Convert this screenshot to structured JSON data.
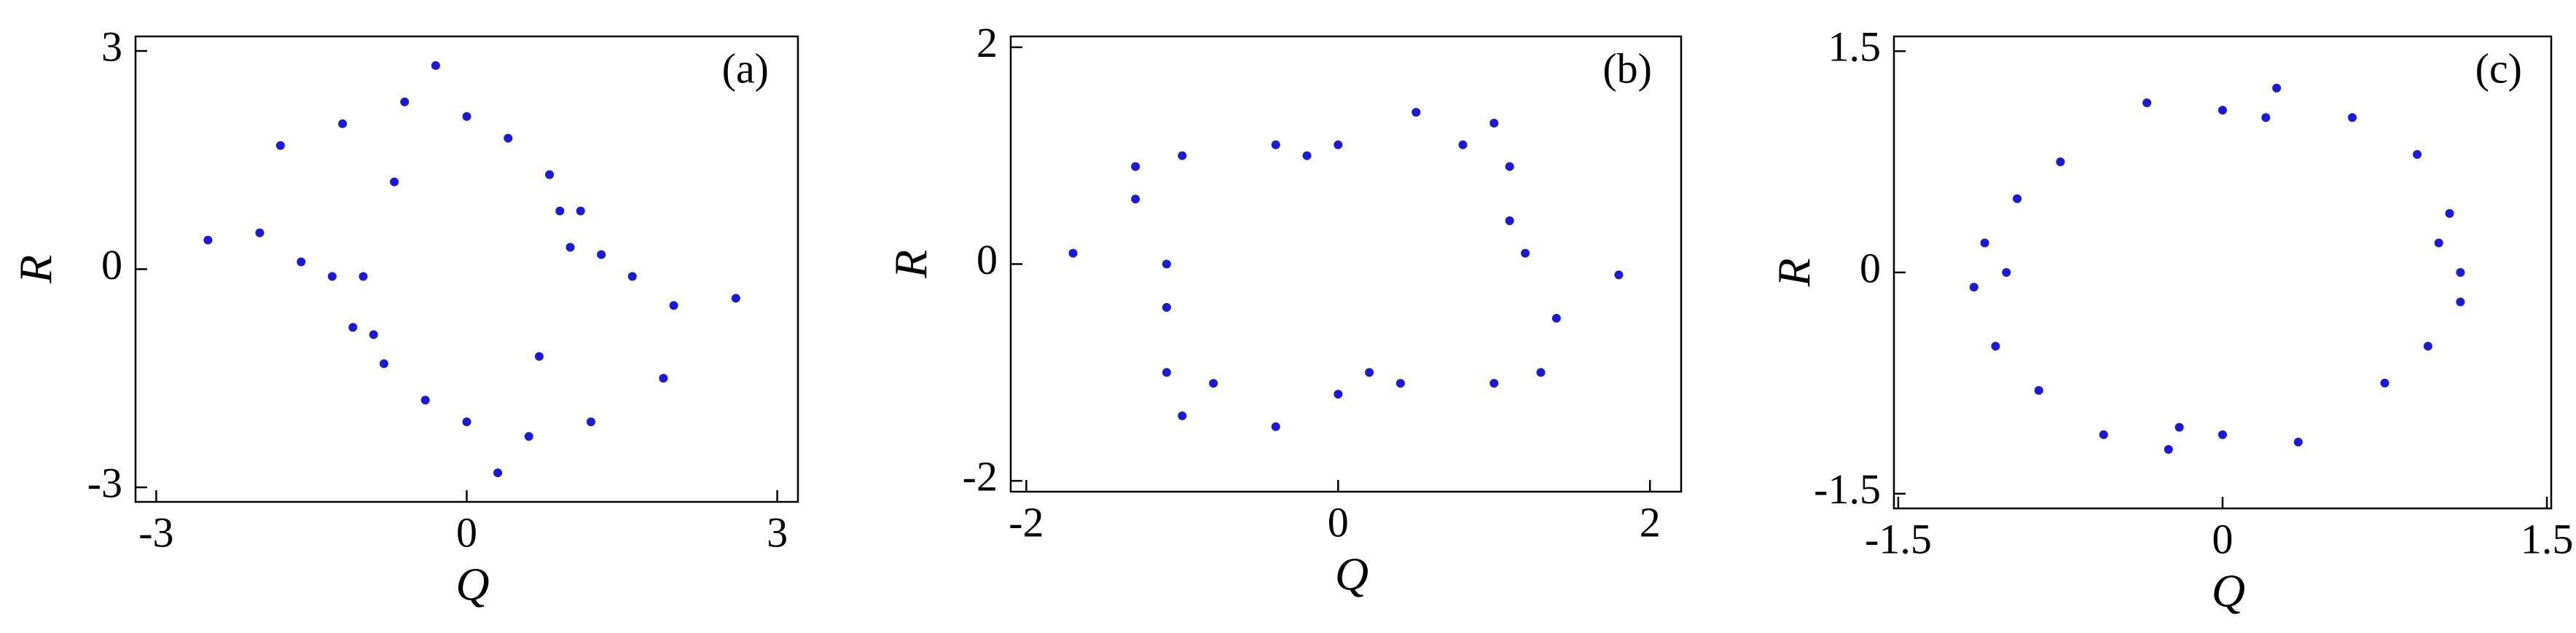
{
  "chart_data": [
    {
      "type": "scatter",
      "label": "(a)",
      "x_label": "Q",
      "y_label": "R",
      "xlim": [
        -3.2,
        3.2
      ],
      "ylim": [
        -3.2,
        3.2
      ],
      "xticks": [
        -3,
        0,
        3
      ],
      "yticks": [
        -3,
        0,
        3
      ],
      "series": [
        {
          "color": "#1a1adc",
          "x": [
            -2.0,
            -1.8,
            -1.2,
            -0.6,
            -0.3,
            0,
            0.4,
            0.8,
            1.1,
            1.3,
            1.6,
            2.0,
            1.9,
            1.2,
            0.6,
            0.3,
            0,
            -0.4,
            -0.8,
            -1.1,
            -1.3,
            -1.6,
            -2.5,
            2.6,
            -1.0,
            1.0,
            -0.9,
            0.9,
            -0.7,
            0.7
          ],
          "y": [
            0.5,
            1.7,
            2.0,
            2.3,
            2.8,
            2.1,
            1.8,
            1.3,
            0.8,
            0.2,
            -0.1,
            -0.5,
            -1.5,
            -2.1,
            -2.3,
            -2.8,
            -2.1,
            -1.8,
            -1.3,
            -0.8,
            -0.1,
            0.1,
            0.4,
            -0.4,
            -0.1,
            0.3,
            -0.9,
            0.8,
            1.2,
            -1.2
          ]
        }
      ]
    },
    {
      "type": "scatter",
      "label": "(b)",
      "x_label": "Q",
      "y_label": "R",
      "xlim": [
        -2.1,
        2.2
      ],
      "ylim": [
        -2.1,
        2.1
      ],
      "xticks": [
        -2,
        0,
        2
      ],
      "yticks": [
        -2,
        0,
        2
      ],
      "series": [
        {
          "color": "#1a1adc",
          "x": [
            -1.3,
            -1.0,
            -0.4,
            0,
            0.5,
            1.0,
            1.1,
            1.1,
            1.2,
            1.4,
            1.3,
            1.0,
            0.4,
            0,
            -0.4,
            -1.0,
            -1.1,
            -1.1,
            -1.1,
            -1.3,
            -1.7,
            1.8,
            -0.8,
            0.8,
            0.2,
            -0.2
          ],
          "y": [
            0.9,
            1.0,
            1.1,
            1.1,
            1.4,
            1.3,
            0.9,
            0.4,
            0.1,
            -0.5,
            -1.0,
            -1.1,
            -1.1,
            -1.2,
            -1.5,
            -1.4,
            -1.0,
            -0.4,
            0,
            0.6,
            0.1,
            -0.1,
            -1.1,
            1.1,
            -1.0,
            1.0
          ]
        }
      ]
    },
    {
      "type": "scatter",
      "label": "(c)",
      "x_label": "Q",
      "y_label": "R",
      "xlim": [
        -1.52,
        1.52
      ],
      "ylim": [
        -1.6,
        1.6
      ],
      "xticks": [
        -1.5,
        0,
        1.5
      ],
      "yticks": [
        -1.5,
        0,
        1.5
      ],
      "series": [
        {
          "color": "#1a1adc",
          "x": [
            1.1,
            1.05,
            0.9,
            0.6,
            0.25,
            0,
            -0.35,
            -0.75,
            -0.95,
            -1.1,
            -1.15,
            -1.05,
            -0.85,
            -0.55,
            -0.25,
            0,
            0.35,
            0.75,
            0.95,
            1.1,
            -1.0,
            1.0,
            -0.2,
            0.2
          ],
          "y": [
            0,
            0.4,
            0.8,
            1.05,
            1.25,
            1.1,
            1.15,
            0.75,
            0.5,
            0.2,
            -0.1,
            -0.5,
            -0.8,
            -1.1,
            -1.2,
            -1.1,
            -1.15,
            -0.75,
            -0.5,
            -0.2,
            0,
            0.2,
            -1.05,
            1.05
          ]
        }
      ]
    }
  ]
}
